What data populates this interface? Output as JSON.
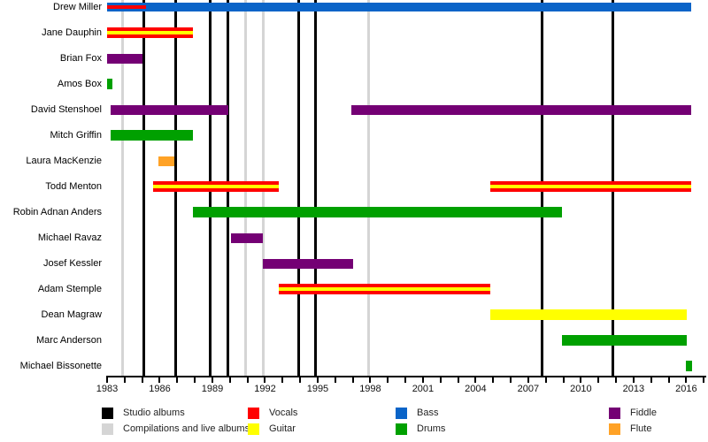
{
  "colors": {
    "studio": "#000000",
    "compilation": "#d5d5d5",
    "vocals": "#ff0000",
    "guitar": "#ffff00",
    "bass": "#0a64c8",
    "drums": "#00a000",
    "fiddle": "#740074",
    "flute": "#ffa226"
  },
  "chart_data": {
    "type": "bar",
    "subtype": "gantt-timeline-band-members",
    "title": "",
    "xlabel": "",
    "ylabel": "",
    "grid": "vertical-event-lines",
    "legend_position": "bottom",
    "x_axis": {
      "min": 1983,
      "max": 2017,
      "tick_step": 1,
      "label_step": 3,
      "labels": [
        1983,
        1986,
        1989,
        1992,
        1995,
        1998,
        2001,
        2004,
        2007,
        2010,
        2013,
        2016
      ]
    },
    "members": [
      {
        "name": "Drew Miller",
        "bars": [
          {
            "start": 1983.0,
            "end": 1985.2,
            "stripes": [
              "bass",
              "vocals",
              "bass"
            ],
            "h": 10
          },
          {
            "start": 1985.2,
            "end": 2016.3,
            "stripes": [
              "bass"
            ],
            "h": 10
          }
        ]
      },
      {
        "name": "Jane Dauphin",
        "bars": [
          {
            "start": 1983.0,
            "end": 1987.9,
            "stripes": [
              "vocals",
              "guitar",
              "vocals"
            ],
            "h": 12
          }
        ]
      },
      {
        "name": "Brian Fox",
        "bars": [
          {
            "start": 1983.0,
            "end": 1985.0,
            "stripes": [
              "fiddle"
            ],
            "h": 11
          }
        ]
      },
      {
        "name": "Amos Box",
        "bars": [
          {
            "start": 1983.0,
            "end": 1983.3,
            "stripes": [
              "drums"
            ],
            "h": 12
          }
        ]
      },
      {
        "name": "David Stenshoel",
        "bars": [
          {
            "start": 1983.2,
            "end": 1989.9,
            "stripes": [
              "fiddle"
            ],
            "h": 11
          },
          {
            "start": 1996.9,
            "end": 2016.3,
            "stripes": [
              "fiddle"
            ],
            "h": 11
          }
        ]
      },
      {
        "name": "Mitch Griffin",
        "bars": [
          {
            "start": 1983.2,
            "end": 1987.9,
            "stripes": [
              "drums"
            ],
            "h": 12
          }
        ]
      },
      {
        "name": "Laura MacKenzie",
        "bars": [
          {
            "start": 1985.9,
            "end": 1986.85,
            "stripes": [
              "flute"
            ],
            "h": 11
          }
        ]
      },
      {
        "name": "Todd Menton",
        "bars": [
          {
            "start": 1985.6,
            "end": 1992.8,
            "stripes": [
              "vocals",
              "guitar",
              "vocals"
            ],
            "h": 12
          },
          {
            "start": 2004.85,
            "end": 2016.3,
            "stripes": [
              "vocals",
              "guitar",
              "vocals"
            ],
            "h": 12
          }
        ]
      },
      {
        "name": "Robin Adnan Anders",
        "bars": [
          {
            "start": 1987.9,
            "end": 2008.9,
            "stripes": [
              "drums"
            ],
            "h": 12
          }
        ]
      },
      {
        "name": "Michael Ravaz",
        "bars": [
          {
            "start": 1990.05,
            "end": 1991.9,
            "stripes": [
              "fiddle"
            ],
            "h": 11
          }
        ]
      },
      {
        "name": "Josef Kessler",
        "bars": [
          {
            "start": 1991.9,
            "end": 1997.0,
            "stripes": [
              "fiddle"
            ],
            "h": 11
          }
        ]
      },
      {
        "name": "Adam Stemple",
        "bars": [
          {
            "start": 1992.8,
            "end": 2004.85,
            "stripes": [
              "vocals",
              "guitar",
              "vocals"
            ],
            "h": 12
          }
        ]
      },
      {
        "name": "Dean Magraw",
        "bars": [
          {
            "start": 2004.85,
            "end": 2016.05,
            "stripes": [
              "guitar"
            ],
            "h": 12
          }
        ]
      },
      {
        "name": "Marc Anderson",
        "bars": [
          {
            "start": 2008.9,
            "end": 2016.05,
            "stripes": [
              "drums"
            ],
            "h": 12
          }
        ]
      },
      {
        "name": "Michael Bissonette",
        "bars": [
          {
            "start": 2016.0,
            "end": 2016.35,
            "stripes": [
              "drums"
            ],
            "h": 12
          }
        ]
      }
    ],
    "album_lines": {
      "studio": [
        1985.1,
        1986.9,
        1988.85,
        1989.9,
        1993.9,
        1994.9,
        2007.8,
        2011.8
      ],
      "compilations_live": [
        1983.9,
        1990.9,
        1991.9,
        1997.9
      ]
    },
    "legend": [
      {
        "label": "Studio albums",
        "color": "studio"
      },
      {
        "label": "Compilations and live albums",
        "color": "compilation"
      },
      {
        "label": "Vocals",
        "color": "vocals"
      },
      {
        "label": "Guitar",
        "color": "guitar"
      },
      {
        "label": "Bass",
        "color": "bass"
      },
      {
        "label": "Drums",
        "color": "drums"
      },
      {
        "label": "Fiddle",
        "color": "fiddle"
      },
      {
        "label": "Flute",
        "color": "flute"
      }
    ]
  }
}
